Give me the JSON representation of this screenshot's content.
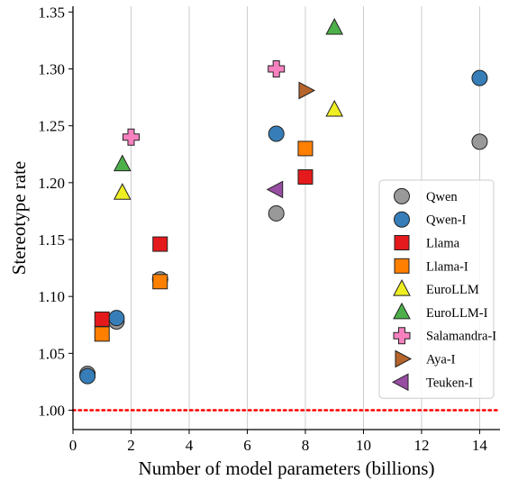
{
  "chart_data": {
    "type": "scatter",
    "title": "",
    "xlabel": "Number of model parameters (billions)",
    "ylabel": "Stereotype rate",
    "xlim": [
      0,
      14.7
    ],
    "ylim": [
      0.983,
      1.355
    ],
    "xticks": [
      0,
      2,
      4,
      6,
      8,
      10,
      12,
      14
    ],
    "yticks": [
      1.0,
      1.05,
      1.1,
      1.15,
      1.2,
      1.25,
      1.3,
      1.35
    ],
    "grid": "vertical lines at x ticks",
    "legend_position": "center-right",
    "reference_line": {
      "y": 1.0,
      "style": "dotted",
      "color": "#ff0000"
    },
    "series": [
      {
        "name": "Qwen",
        "marker": "circle",
        "color": "#999999",
        "points": [
          [
            0.5,
            1.032
          ],
          [
            1.5,
            1.078
          ],
          [
            3,
            1.115
          ],
          [
            7,
            1.173
          ],
          [
            14,
            1.236
          ]
        ]
      },
      {
        "name": "Qwen-I",
        "marker": "circle",
        "color": "#377eb8",
        "points": [
          [
            0.5,
            1.03
          ],
          [
            1.5,
            1.081
          ],
          [
            7,
            1.243
          ],
          [
            14,
            1.292
          ]
        ]
      },
      {
        "name": "Llama",
        "marker": "square",
        "color": "#e41a1c",
        "points": [
          [
            1,
            1.08
          ],
          [
            3,
            1.146
          ],
          [
            8,
            1.205
          ]
        ]
      },
      {
        "name": "Llama-I",
        "marker": "square",
        "color": "#ff7f00",
        "points": [
          [
            1,
            1.067
          ],
          [
            3,
            1.113
          ],
          [
            8,
            1.23
          ]
        ]
      },
      {
        "name": "EuroLLM",
        "marker": "triangle-up",
        "color": "#eeee22",
        "points": [
          [
            1.7,
            1.191
          ],
          [
            9,
            1.264
          ]
        ]
      },
      {
        "name": "EuroLLM-I",
        "marker": "triangle-up",
        "color": "#4daf4a",
        "points": [
          [
            1.7,
            1.216
          ],
          [
            9,
            1.336
          ]
        ]
      },
      {
        "name": "Salamandra-I",
        "marker": "plus",
        "color": "#f781bf",
        "points": [
          [
            2,
            1.24
          ],
          [
            7,
            1.3
          ]
        ]
      },
      {
        "name": "Aya-I",
        "marker": "triangle-right",
        "color": "#b5642b",
        "points": [
          [
            8,
            1.281
          ]
        ]
      },
      {
        "name": "Teuken-I",
        "marker": "triangle-left",
        "color": "#984ea3",
        "points": [
          [
            7,
            1.194
          ]
        ]
      }
    ]
  }
}
